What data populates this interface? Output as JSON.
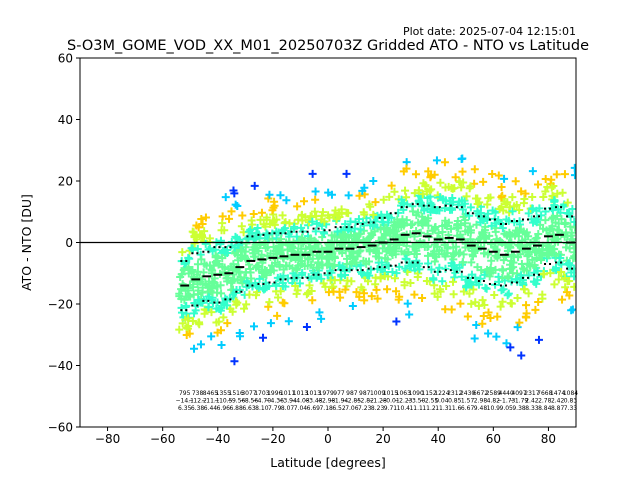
{
  "plot_date": "Plot date: 2025-07-04 12:15:01",
  "chart_data": {
    "type": "scatter",
    "title": "S-O3M_GOME_VOD_XX_M01_20250703Z Gridded ATO - NTO vs Latitude",
    "xlabel": "Latitude [degrees]",
    "ylabel": "ATO - NTO [DU]",
    "xlim": [
      -90,
      90
    ],
    "ylim": [
      -60,
      60
    ],
    "xticks": [
      -80,
      -60,
      -40,
      -20,
      0,
      20,
      40,
      60,
      80
    ],
    "yticks": [
      -60,
      -40,
      -20,
      0,
      20,
      40,
      60
    ],
    "xtick_labels": [
      "−80",
      "−60",
      "−40",
      "−20",
      "0",
      "20",
      "40",
      "60",
      "80"
    ],
    "ytick_labels": [
      "−60",
      "−40",
      "−20",
      "0",
      "20",
      "40",
      "60"
    ],
    "zero_line": 0,
    "grid": false,
    "legend": "none",
    "marker": "plus",
    "point_colors": [
      "#66ff99",
      "#33ffcc",
      "#ccff33",
      "#ffcc00",
      "#00ccff",
      "#0033ff"
    ],
    "bin_lat": [
      -52,
      -48,
      -44,
      -40,
      -36,
      -32,
      -28,
      -24,
      -20,
      -16,
      -12,
      -8,
      -4,
      0,
      4,
      8,
      12,
      16,
      20,
      24,
      28,
      32,
      36,
      40,
      44,
      48,
      52,
      56,
      60,
      64,
      68,
      72,
      76,
      80,
      84,
      88
    ],
    "bin_mean": [
      -14,
      -12,
      -11,
      -10.5,
      -10,
      -8,
      -6,
      -5.5,
      -5,
      -4.5,
      -4,
      -4,
      -3,
      -3,
      -2,
      -2,
      -1.5,
      -1,
      0,
      1,
      2.5,
      3,
      2,
      1,
      1.5,
      1,
      -1,
      -2,
      -3,
      -4,
      -3,
      -2,
      -1,
      2,
      2.5,
      0
    ],
    "bin_std": [
      8,
      8.5,
      8,
      9,
      8.5,
      8,
      8,
      8,
      8,
      7.5,
      7.5,
      7.5,
      7.5,
      7,
      7,
      7,
      7.5,
      7.5,
      8,
      8.5,
      9,
      9.5,
      10,
      10.5,
      10.5,
      10.5,
      10.5,
      10.5,
      10.5,
      10,
      10,
      9.5,
      9.5,
      9,
      9,
      8.5
    ],
    "bin_labels": [
      [
        "795",
        "−14.1",
        "6.35"
      ],
      [
        "738",
        "−12.2",
        "6.38"
      ],
      [
        "8465",
        "−11.1",
        "6.44"
      ],
      [
        "1355",
        "−10.5",
        "6.96"
      ],
      [
        "1516",
        "−9.56",
        "6.88"
      ],
      [
        "3077",
        "−8.56",
        "6.63"
      ],
      [
        "1703",
        "−4.70",
        "8.10"
      ],
      [
        "1996",
        "−4.36",
        "7.79"
      ],
      [
        "1011",
        "−3.94",
        "8.07"
      ],
      [
        "1013",
        "−4.08",
        "7.04"
      ],
      [
        "1013",
        "−3.48",
        "6.69"
      ],
      [
        "1979",
        "−2.98",
        "7.18"
      ],
      [
        "977",
        "−1.94",
        "6.52"
      ],
      [
        "987",
        "−2.85",
        "7.06"
      ],
      [
        "987",
        "−2.82",
        "7.23"
      ],
      [
        "1009",
        "−1.28",
        "8.23"
      ],
      [
        "1015",
        "−0.01",
        "9.71"
      ],
      [
        "1063",
        "−2.23",
        "10.4"
      ],
      [
        "1090",
        "−3.50",
        "11.1"
      ],
      [
        "1152",
        "−2.55",
        "11.2"
      ],
      [
        "1224",
        "0.04",
        "11.3"
      ],
      [
        "2312",
        "0.85",
        "11.6"
      ],
      [
        "2430",
        "1.57",
        "6.67"
      ],
      [
        "6672",
        "2.98",
        "9.48"
      ],
      [
        "2589",
        "4.82",
        "10.9"
      ],
      [
        "4440",
        "−1.73",
        "9.05"
      ],
      [
        "4097",
        "−1.79",
        "9.38"
      ],
      [
        "2317",
        "2.42",
        "8.33"
      ],
      [
        "7668",
        "2.78",
        "8.84"
      ],
      [
        "1474",
        "2.42",
        "8.87"
      ],
      [
        "1084",
        "0.83",
        "7.33"
      ]
    ]
  }
}
